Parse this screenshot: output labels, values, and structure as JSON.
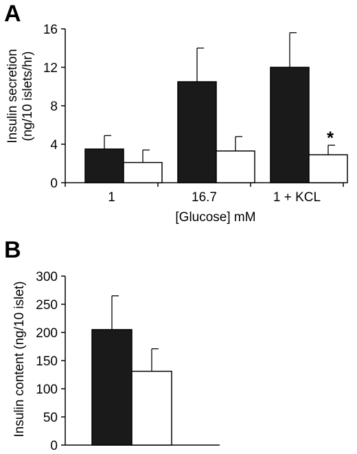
{
  "chart_data": [
    {
      "panel": "A",
      "type": "bar",
      "ylabel": "Insulin secretion (ng/10 islets/hr)",
      "ylabel_lines": [
        "Insulin secretion",
        "(ng/10 islets/hr)"
      ],
      "xlabel": "[Glucose]  mM",
      "categories": [
        "1",
        "16.7",
        "1 + KCL"
      ],
      "ylim": [
        0,
        16
      ],
      "yticks": [
        0,
        4,
        8,
        12,
        16
      ],
      "series": [
        {
          "color": "#1a1a1a",
          "values": [
            3.5,
            10.5,
            12.0
          ],
          "errors": [
            1.4,
            3.5,
            3.6
          ]
        },
        {
          "color": "#ffffff",
          "values": [
            2.1,
            3.3,
            2.9
          ],
          "errors": [
            1.3,
            1.5,
            1.0
          ]
        }
      ],
      "annotations": [
        {
          "text": "*",
          "category_index": 2,
          "series_index": 1
        }
      ]
    },
    {
      "panel": "B",
      "type": "bar",
      "ylabel": "Insulin content (ng/10 islet)",
      "ylim": [
        0,
        300
      ],
      "yticks": [
        0,
        50,
        100,
        150,
        200,
        250,
        300
      ],
      "series": [
        {
          "color": "#1a1a1a",
          "values": [
            205
          ],
          "errors": [
            60
          ]
        },
        {
          "color": "#ffffff",
          "values": [
            131
          ],
          "errors": [
            40
          ]
        }
      ]
    }
  ]
}
